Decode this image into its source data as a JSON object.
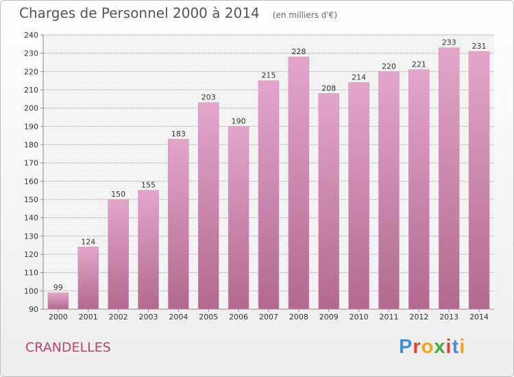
{
  "header": {
    "title": "Charges de Personnel 2000 à 2014",
    "subtitle": "(en milliers d'€)"
  },
  "footer": {
    "place": "CRANDELLES",
    "logo_text": "Proxiti",
    "logo_letters": [
      {
        "char": "P",
        "color": "#4a8fd6"
      },
      {
        "char": "r",
        "color": "#e5412d"
      },
      {
        "char": "o",
        "color": "#f2a51f"
      },
      {
        "char": "x",
        "color": "#4aa93f"
      },
      {
        "char": "i",
        "color": "#e5412d"
      },
      {
        "char": "t",
        "color": "#4a8fd6"
      },
      {
        "char": "i",
        "color": "#f2a51f"
      }
    ]
  },
  "colors": {
    "bar_top": "#e3a6cb",
    "bar_bottom": "#b2698f",
    "town": "#c2406f"
  },
  "chart_data": {
    "type": "bar",
    "title": "Charges de Personnel 2000 à 2014",
    "subtitle": "(en milliers d'€)",
    "categories": [
      "2000",
      "2001",
      "2002",
      "2003",
      "2004",
      "2005",
      "2006",
      "2007",
      "2008",
      "2009",
      "2010",
      "2011",
      "2012",
      "2013",
      "2014"
    ],
    "values": [
      99,
      124,
      150,
      155,
      183,
      203,
      190,
      215,
      228,
      208,
      214,
      220,
      221,
      233,
      231
    ],
    "ylim": [
      90,
      240
    ],
    "yticks": [
      90,
      100,
      110,
      120,
      130,
      140,
      150,
      160,
      170,
      180,
      190,
      200,
      210,
      220,
      230,
      240
    ],
    "grid": true,
    "data_labels": true
  }
}
